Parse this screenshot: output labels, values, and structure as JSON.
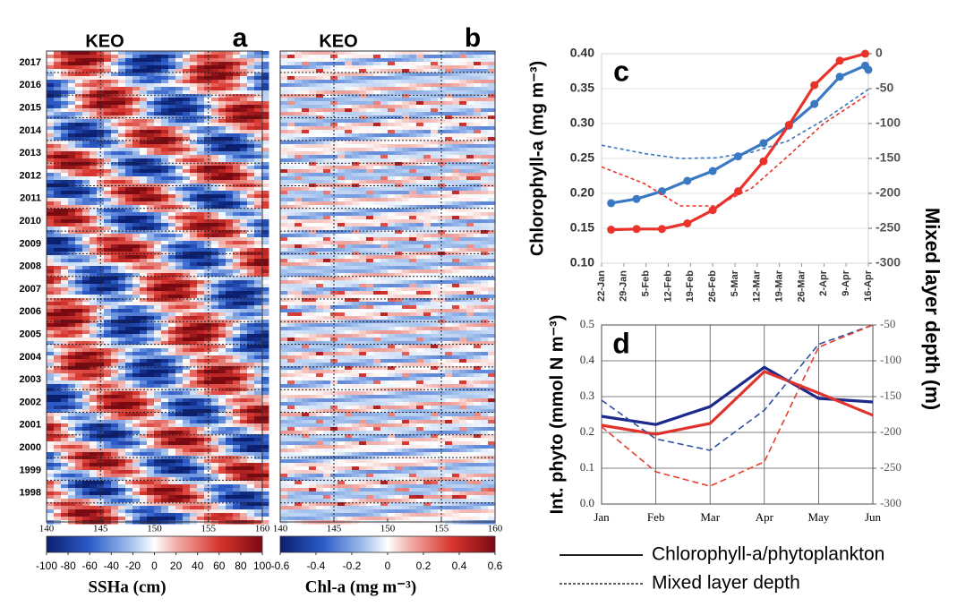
{
  "chart_data": [
    {
      "type": "heatmap",
      "panel": "a",
      "label": "KEO",
      "categories": [
        "2017",
        "2016",
        "2015",
        "2014",
        "2013",
        "2012",
        "2011",
        "2010",
        "2009",
        "2008",
        "2007",
        "2006",
        "2005",
        "2004",
        "2003",
        "2002",
        "2001",
        "2000",
        "1999",
        "1998"
      ],
      "xlim": [
        140,
        160
      ],
      "xticks": [
        140,
        145,
        150,
        155,
        160
      ],
      "colorbar": {
        "label": "SSHa (cm)",
        "lim": [
          -100,
          100
        ],
        "ticks": [
          -100,
          -80,
          -60,
          -40,
          -20,
          0,
          20,
          40,
          60,
          80,
          100
        ]
      }
    },
    {
      "type": "heatmap",
      "panel": "b",
      "label": "KEO",
      "categories": [
        "2017",
        "2016",
        "2015",
        "2014",
        "2013",
        "2012",
        "2011",
        "2010",
        "2009",
        "2008",
        "2007",
        "2006",
        "2005",
        "2004",
        "2003",
        "2002",
        "2001",
        "2000",
        "1999",
        "1998"
      ],
      "xlim": [
        140,
        160
      ],
      "xticks": [
        140,
        145,
        150,
        155,
        160
      ],
      "colorbar": {
        "label": "Chl-a (mg m⁻³)",
        "lim": [
          -0.6,
          0.6
        ],
        "ticks": [
          -0.6,
          -0.4,
          -0.2,
          0,
          0.2,
          0.4,
          0.6
        ]
      }
    },
    {
      "type": "line",
      "panel": "c",
      "ylabel": "Chlorophyll-a (mg m⁻³)",
      "y2label": "Mixed layer depth (m)",
      "xlim": [
        22,
        106
      ],
      "xticks": [
        {
          "value": 22,
          "label": "22-Jan"
        },
        {
          "value": 29,
          "label": "29-Jan"
        },
        {
          "value": 36,
          "label": "5-Feb"
        },
        {
          "value": 43,
          "label": "12-Feb"
        },
        {
          "value": 50,
          "label": "19-Feb"
        },
        {
          "value": 57,
          "label": "26-Feb"
        },
        {
          "value": 64,
          "label": "5-Mar"
        },
        {
          "value": 71,
          "label": "12-Mar"
        },
        {
          "value": 78,
          "label": "19-Mar"
        },
        {
          "value": 85,
          "label": "26-Mar"
        },
        {
          "value": 92,
          "label": "2-Apr"
        },
        {
          "value": 99,
          "label": "9-Apr"
        },
        {
          "value": 106,
          "label": "16-Apr"
        }
      ],
      "ylim": [
        0.1,
        0.4
      ],
      "yticks": [
        {
          "value": 0.1,
          "label": "0.10"
        },
        0.15,
        {
          "value": 0.2,
          "label": "0.20"
        },
        0.25,
        {
          "value": 0.3,
          "label": "0.30"
        },
        0.35,
        {
          "value": 0.4,
          "label": "0.40"
        }
      ],
      "y2lim": [
        -300,
        0
      ],
      "y2ticks": [
        0,
        -50,
        -100,
        -150,
        -200,
        -250,
        -300
      ],
      "grid": true,
      "series": [
        {
          "color": "#3a78c2",
          "style": "solid",
          "markers": true,
          "x": [
            25,
            33,
            41,
            49,
            57,
            65,
            73,
            81,
            89,
            97,
            105,
            106
          ],
          "values": [
            0.186,
            0.192,
            0.203,
            0.218,
            0.232,
            0.253,
            0.272,
            0.297,
            0.328,
            0.367,
            0.383,
            0.377
          ]
        },
        {
          "color": "#e8322a",
          "style": "solid",
          "markers": true,
          "x": [
            25,
            33,
            41,
            49,
            57,
            65,
            73,
            81,
            89,
            97,
            105
          ],
          "values": [
            0.148,
            0.149,
            0.149,
            0.157,
            0.176,
            0.203,
            0.246,
            0.298,
            0.355,
            0.39,
            0.4
          ]
        },
        {
          "color": "#3a78c2",
          "style": "dashed",
          "axis": "y2",
          "x": [
            22,
            35.5,
            46.8,
            58.1,
            69.4,
            80.6,
            91.9,
            106
          ],
          "values": [
            -131,
            -143,
            -150,
            -149,
            -141,
            -125,
            -95,
            -51
          ]
        },
        {
          "color": "#e8322a",
          "style": "dashed",
          "axis": "y2",
          "x": [
            22,
            35.5,
            46.8,
            58.1,
            69.4,
            80.6,
            91.9,
            106
          ],
          "values": [
            -162,
            -186,
            -218,
            -218,
            -192,
            -147,
            -100,
            -58
          ]
        }
      ]
    },
    {
      "type": "line",
      "panel": "d",
      "ylabel": "Int. phyto (mmol N m⁻³)",
      "categories": [
        "Jan",
        "Feb",
        "Mar",
        "Apr",
        "May",
        "Jun"
      ],
      "ylim": [
        0,
        0.5
      ],
      "yticks": [
        {
          "value": 0,
          "label": "0.0"
        },
        0.1,
        0.2,
        0.3,
        0.4,
        0.5
      ],
      "y2lim": [
        -300,
        -50
      ],
      "y2ticks": [
        -50,
        -100,
        -150,
        -200,
        -250,
        -300
      ],
      "grid": true,
      "series": [
        {
          "color": "#1c2a8c",
          "style": "solid",
          "values": [
            0.245,
            0.222,
            0.272,
            0.382,
            0.295,
            0.285
          ]
        },
        {
          "color": "#e0332b",
          "style": "solid",
          "values": [
            0.22,
            0.195,
            0.225,
            0.37,
            0.31,
            0.248
          ]
        },
        {
          "color": "#2f4fa0",
          "style": "dashed",
          "axis": "y2",
          "values": [
            -155,
            -209,
            -225,
            -169,
            -77,
            -50
          ]
        },
        {
          "color": "#e8402f",
          "style": "dashed",
          "axis": "y2",
          "values": [
            -192,
            -255,
            -275,
            -241,
            -81,
            -50
          ]
        }
      ]
    }
  ],
  "legend": [
    {
      "label": "Chlorophyll-a/phytoplankton",
      "style": "solid"
    },
    {
      "label": "Mixed layer depth",
      "style": "dashed"
    }
  ]
}
